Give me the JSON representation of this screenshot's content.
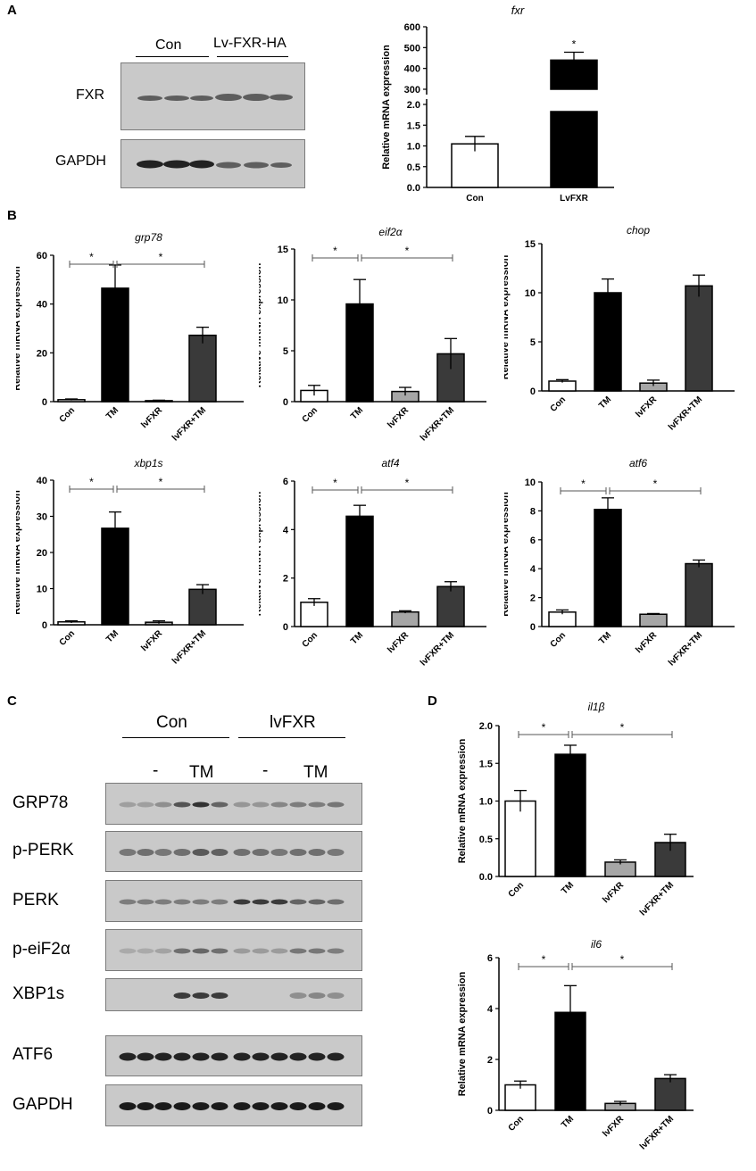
{
  "panels": {
    "a": "A",
    "b": "B",
    "c": "C",
    "d": "D"
  },
  "blot_a": {
    "groups": [
      "Con",
      "Lv-FXR-HA"
    ],
    "rows": [
      "FXR",
      "GAPDH"
    ]
  },
  "blot_c": {
    "groups": [
      "Con",
      "lvFXR"
    ],
    "treatments": [
      "-",
      "TM",
      "-",
      "TM"
    ],
    "rows": [
      "GRP78",
      "p-PERK",
      "PERK",
      "p-eiF2α",
      "XBP1s",
      "ATF6",
      "GAPDH"
    ]
  },
  "colors": {
    "con": "#ffffff",
    "tm": "#000000",
    "lvfxr": "#a6a6a6",
    "lvfxr_tm": "#3a3a3a"
  },
  "chart_data": [
    {
      "id": "fxr",
      "type": "bar",
      "title": "fxr",
      "ylabel": "Relative mRNA expression",
      "categories": [
        "Con",
        "LvFXR"
      ],
      "values": [
        1.05,
        440
      ],
      "errors": [
        0.18,
        38
      ],
      "broken_axis": {
        "lower": [
          0,
          2.0
        ],
        "upper": [
          300,
          600
        ]
      },
      "lower_ticks": [
        "0.0",
        "0.5",
        "1.0",
        "1.5",
        "2.0"
      ],
      "upper_ticks": [
        "300",
        "400",
        "500",
        "600"
      ],
      "annotations": [
        "*"
      ]
    },
    {
      "id": "grp78",
      "type": "bar",
      "title": "grp78",
      "ylabel": "Relative mRNA expression",
      "categories": [
        "Con",
        "TM",
        "lvFXR",
        "lvFXR+TM"
      ],
      "values": [
        0.8,
        46.5,
        0.4,
        27.2
      ],
      "errors": [
        0.3,
        9.5,
        0.2,
        3.3
      ],
      "ylim": [
        0,
        60
      ],
      "ticks": [
        "0",
        "20",
        "40",
        "60"
      ],
      "tickvals": [
        0,
        20,
        40,
        60
      ],
      "sig_brackets": [
        {
          "from": 0,
          "to": 1,
          "label": "*"
        },
        {
          "from": 1,
          "to": 3,
          "label": "*"
        }
      ]
    },
    {
      "id": "eif2a",
      "type": "bar",
      "title": "eif2α",
      "ylabel": "Relative mRNA expression",
      "categories": [
        "Con",
        "TM",
        "lvFXR",
        "lvFXR+TM"
      ],
      "values": [
        1.1,
        9.6,
        1.0,
        4.7
      ],
      "errors": [
        0.5,
        2.4,
        0.4,
        1.5
      ],
      "ylim": [
        0,
        15
      ],
      "ticks": [
        "0",
        "5",
        "10",
        "15"
      ],
      "tickvals": [
        0,
        5,
        10,
        15
      ],
      "sig_brackets": [
        {
          "from": 0,
          "to": 1,
          "label": "*"
        },
        {
          "from": 1,
          "to": 3,
          "label": "*"
        }
      ]
    },
    {
      "id": "chop",
      "type": "bar",
      "title": "chop",
      "ylabel": "Relative mRNA expression",
      "categories": [
        "Con",
        "TM",
        "lvFXR",
        "lvFXR+TM"
      ],
      "values": [
        1.0,
        10.0,
        0.8,
        10.7
      ],
      "errors": [
        0.15,
        1.4,
        0.3,
        1.1
      ],
      "ylim": [
        0,
        15
      ],
      "ticks": [
        "0",
        "5",
        "10",
        "15"
      ],
      "tickvals": [
        0,
        5,
        10,
        15
      ],
      "sig_brackets": []
    },
    {
      "id": "xbp1s",
      "type": "bar",
      "title": "xbp1s",
      "ylabel": "Relative mRNA expression",
      "categories": [
        "Con",
        "TM",
        "lvFXR",
        "lvFXR+TM"
      ],
      "values": [
        0.8,
        26.7,
        0.7,
        9.8
      ],
      "errors": [
        0.3,
        4.5,
        0.4,
        1.3
      ],
      "ylim": [
        0,
        40
      ],
      "ticks": [
        "0",
        "10",
        "20",
        "30",
        "40"
      ],
      "tickvals": [
        0,
        10,
        20,
        30,
        40
      ],
      "sig_brackets": [
        {
          "from": 0,
          "to": 1,
          "label": "*"
        },
        {
          "from": 1,
          "to": 3,
          "label": "*"
        }
      ]
    },
    {
      "id": "atf4",
      "type": "bar",
      "title": "atf4",
      "ylabel": "Relative mRNA expression",
      "categories": [
        "Con",
        "TM",
        "lvFXR",
        "lvFXR+TM"
      ],
      "values": [
        1.0,
        4.55,
        0.6,
        1.65
      ],
      "errors": [
        0.15,
        0.45,
        0.05,
        0.2
      ],
      "ylim": [
        0,
        6
      ],
      "ticks": [
        "0",
        "2",
        "4",
        "6"
      ],
      "tickvals": [
        0,
        2,
        4,
        6
      ],
      "sig_brackets": [
        {
          "from": 0,
          "to": 1,
          "label": "*"
        },
        {
          "from": 1,
          "to": 3,
          "label": "*"
        }
      ]
    },
    {
      "id": "atf6",
      "type": "bar",
      "title": "atf6",
      "ylabel": "Relative mRNA expression",
      "categories": [
        "Con",
        "TM",
        "lvFXR",
        "lvFXR+TM"
      ],
      "values": [
        1.0,
        8.1,
        0.85,
        4.35
      ],
      "errors": [
        0.15,
        0.8,
        0.05,
        0.25
      ],
      "ylim": [
        0,
        10
      ],
      "ticks": [
        "0",
        "2",
        "4",
        "6",
        "8",
        "10"
      ],
      "tickvals": [
        0,
        2,
        4,
        6,
        8,
        10
      ],
      "sig_brackets": [
        {
          "from": 0,
          "to": 1,
          "label": "*"
        },
        {
          "from": 1,
          "to": 3,
          "label": "*"
        }
      ]
    },
    {
      "id": "il1b",
      "type": "bar",
      "title": "il1β",
      "ylabel": "Relative mRNA expression",
      "categories": [
        "Con",
        "TM",
        "lvFXR",
        "lvFXR+TM"
      ],
      "values": [
        1.0,
        1.62,
        0.19,
        0.45
      ],
      "errors": [
        0.14,
        0.12,
        0.03,
        0.11
      ],
      "ylim": [
        0,
        2.0
      ],
      "ticks": [
        "0.0",
        "0.5",
        "1.0",
        "1.5",
        "2.0"
      ],
      "tickvals": [
        0,
        0.5,
        1.0,
        1.5,
        2.0
      ],
      "sig_brackets": [
        {
          "from": 0,
          "to": 1,
          "label": "*"
        },
        {
          "from": 1,
          "to": 3,
          "label": "*"
        }
      ]
    },
    {
      "id": "il6",
      "type": "bar",
      "title": "il6",
      "ylabel": "Relative mRNA expression",
      "categories": [
        "Con",
        "TM",
        "lvFXR",
        "lvFXR+TM"
      ],
      "values": [
        1.0,
        3.85,
        0.27,
        1.25
      ],
      "errors": [
        0.15,
        1.05,
        0.08,
        0.15
      ],
      "ylim": [
        0,
        6
      ],
      "ticks": [
        "0",
        "2",
        "4",
        "6"
      ],
      "tickvals": [
        0,
        2,
        4,
        6
      ],
      "sig_brackets": [
        {
          "from": 0,
          "to": 1,
          "label": "*"
        },
        {
          "from": 1,
          "to": 3,
          "label": "*"
        }
      ]
    }
  ]
}
